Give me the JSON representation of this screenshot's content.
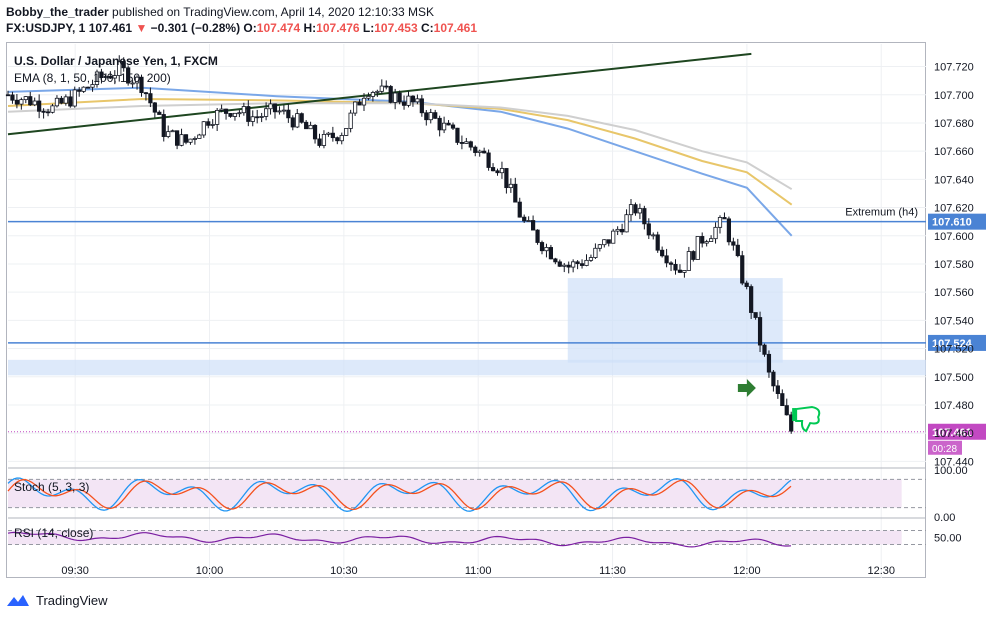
{
  "header": {
    "publisher": "Bobby_the_trader",
    "published_text": "published on TradingView.com, April 14, 2020 12:10:33 MSK",
    "symbol": "FX:USDJPY, 1",
    "price": "107.461",
    "change_arrow": "▼",
    "change": "−0.301 (−0.28%)",
    "o_label": "O:",
    "o": "107.474",
    "h_label": "H:",
    "h": "107.476",
    "l_label": "L:",
    "l": "107.453",
    "c_label": "C:",
    "c": "107.461"
  },
  "chart_data": {
    "type": "candlestick",
    "title": "U.S. Dollar / Japanese Yen, 1, FXCM",
    "ema_legend": "EMA (8, 1, 50, 100, 150, 200)",
    "ylim": [
      107.436,
      107.736
    ],
    "y_ticks": [
      "107.720",
      "107.700",
      "107.680",
      "107.660",
      "107.640",
      "107.620",
      "107.600",
      "107.580",
      "107.560",
      "107.540",
      "107.520",
      "107.500",
      "107.480",
      "107.460",
      "107.440"
    ],
    "x_ticks": [
      "09:30",
      "10:00",
      "10:30",
      "11:00",
      "11:30",
      "12:00",
      "12:30"
    ],
    "horizontal_lines": [
      {
        "value": 107.61,
        "label": "107.610",
        "annotation": "Extremum (h4)"
      },
      {
        "value": 107.524,
        "label": "107.524"
      }
    ],
    "last_price": {
      "value": 107.461,
      "label": "107.461",
      "countdown": "00:28"
    },
    "zones": [
      {
        "from": "11:20",
        "to": "12:08",
        "y_from": 107.51,
        "y_to": 107.57
      },
      {
        "from": "09:15",
        "to": "12:40",
        "y_from": 107.501,
        "y_to": 107.512
      }
    ],
    "trendline": {
      "from": [
        "09:15",
        107.672
      ],
      "to": [
        "12:01",
        107.729
      ]
    },
    "ema_curves": [
      {
        "color": "#7aa7e8",
        "points": [
          [
            "09:15",
            107.702
          ],
          [
            "09:45",
            107.705
          ],
          [
            "10:15",
            107.699
          ],
          [
            "10:45",
            107.695
          ],
          [
            "11:05",
            107.688
          ],
          [
            "11:20",
            107.676
          ],
          [
            "11:35",
            107.66
          ],
          [
            "11:50",
            107.644
          ],
          [
            "12:00",
            107.634
          ],
          [
            "12:10",
            107.6
          ]
        ]
      },
      {
        "color": "#e8c66a",
        "points": [
          [
            "09:15",
            107.692
          ],
          [
            "09:45",
            107.697
          ],
          [
            "10:15",
            107.696
          ],
          [
            "10:45",
            107.694
          ],
          [
            "11:05",
            107.69
          ],
          [
            "11:20",
            107.682
          ],
          [
            "11:35",
            107.669
          ],
          [
            "11:50",
            107.653
          ],
          [
            "12:00",
            107.645
          ],
          [
            "12:10",
            107.622
          ]
        ]
      },
      {
        "color": "#cfcfcf",
        "points": [
          [
            "09:15",
            107.688
          ],
          [
            "09:45",
            107.692
          ],
          [
            "10:15",
            107.694
          ],
          [
            "10:45",
            107.694
          ],
          [
            "11:05",
            107.691
          ],
          [
            "11:20",
            107.685
          ],
          [
            "11:35",
            107.675
          ],
          [
            "11:50",
            107.66
          ],
          [
            "12:00",
            107.652
          ],
          [
            "12:10",
            107.633
          ]
        ]
      }
    ],
    "closes": [
      [
        "09:15",
        107.7
      ],
      [
        "09:20",
        107.696
      ],
      [
        "09:25",
        107.69
      ],
      [
        "09:30",
        107.699
      ],
      [
        "09:35",
        107.711
      ],
      [
        "09:40",
        107.718
      ],
      [
        "09:45",
        107.707
      ],
      [
        "09:50",
        107.673
      ],
      [
        "09:55",
        107.666
      ],
      [
        "10:00",
        107.684
      ],
      [
        "10:05",
        107.69
      ],
      [
        "10:10",
        107.684
      ],
      [
        "10:15",
        107.689
      ],
      [
        "10:20",
        107.68
      ],
      [
        "10:25",
        107.666
      ],
      [
        "10:30",
        107.675
      ],
      [
        "10:35",
        107.705
      ],
      [
        "10:40",
        107.7
      ],
      [
        "10:45",
        107.695
      ],
      [
        "10:50",
        107.683
      ],
      [
        "10:55",
        107.67
      ],
      [
        "11:00",
        107.66
      ],
      [
        "11:05",
        107.648
      ],
      [
        "11:10",
        107.61
      ],
      [
        "11:15",
        107.592
      ],
      [
        "11:20",
        107.578
      ],
      [
        "11:25",
        107.584
      ],
      [
        "11:30",
        107.6
      ],
      [
        "11:35",
        107.62
      ],
      [
        "11:40",
        107.595
      ],
      [
        "11:45",
        107.575
      ],
      [
        "11:50",
        107.598
      ],
      [
        "11:55",
        107.61
      ],
      [
        "12:00",
        107.56
      ],
      [
        "12:05",
        107.5
      ],
      [
        "12:10",
        107.461
      ]
    ],
    "stoch": {
      "label": "Stoch (5, 3, 3)",
      "ylim": [
        0,
        100
      ],
      "ticks": [
        "100.00",
        "0.00"
      ],
      "bands": [
        80,
        20
      ]
    },
    "rsi": {
      "label": "RSI (14, close)",
      "ylim": [
        0,
        100
      ],
      "ticks": [
        "50.00"
      ],
      "bands": [
        70,
        30
      ]
    }
  },
  "footer": {
    "brand": "TradingView"
  },
  "colors": {
    "up": "#ffffff",
    "down": "#131722",
    "line": "#2962ff",
    "level": "#4a83d4",
    "zone": "#cfe0f8",
    "trend": "#1e4620",
    "last": "#c249c2",
    "stoch_k": "#2196f3",
    "stoch_d": "#f4511e",
    "rsi": "#7b1fa2",
    "osc_band": "#f3e5f5"
  }
}
